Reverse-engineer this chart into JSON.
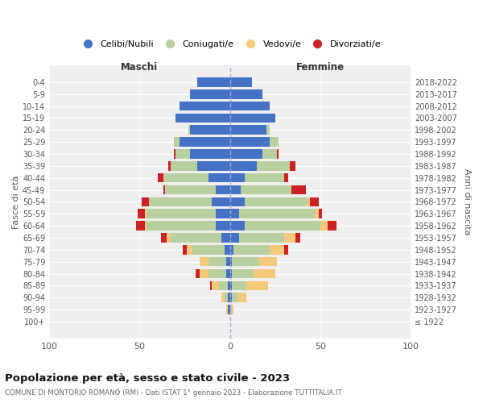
{
  "age_groups": [
    "100+",
    "95-99",
    "90-94",
    "85-89",
    "80-84",
    "75-79",
    "70-74",
    "65-69",
    "60-64",
    "55-59",
    "50-54",
    "45-49",
    "40-44",
    "35-39",
    "30-34",
    "25-29",
    "20-24",
    "15-19",
    "10-14",
    "5-9",
    "0-4"
  ],
  "birth_years": [
    "≤ 1922",
    "1923-1927",
    "1928-1932",
    "1933-1937",
    "1938-1942",
    "1943-1947",
    "1948-1952",
    "1953-1957",
    "1958-1962",
    "1963-1967",
    "1968-1972",
    "1973-1977",
    "1978-1982",
    "1983-1987",
    "1988-1992",
    "1993-1997",
    "1998-2002",
    "2003-2007",
    "2008-2012",
    "2013-2017",
    "2018-2022"
  ],
  "colors": {
    "celibi": "#4472c4",
    "coniugati": "#b8cfa0",
    "vedovi": "#f5c97a",
    "divorziati": "#cc2222"
  },
  "males": {
    "celibi": [
      0,
      1,
      1,
      1,
      2,
      2,
      3,
      5,
      8,
      8,
      10,
      8,
      12,
      18,
      22,
      28,
      22,
      30,
      28,
      22,
      18
    ],
    "coniugati": [
      0,
      0,
      2,
      5,
      10,
      10,
      18,
      28,
      38,
      38,
      35,
      28,
      25,
      15,
      8,
      3,
      1,
      0,
      0,
      0,
      0
    ],
    "vedovi": [
      0,
      1,
      2,
      4,
      5,
      5,
      3,
      2,
      1,
      1,
      0,
      0,
      0,
      0,
      0,
      0,
      0,
      0,
      0,
      0,
      0
    ],
    "divorziati": [
      0,
      0,
      0,
      1,
      2,
      0,
      2,
      3,
      5,
      4,
      4,
      1,
      3,
      1,
      1,
      0,
      0,
      0,
      0,
      0,
      0
    ]
  },
  "females": {
    "celibi": [
      0,
      0,
      1,
      1,
      1,
      1,
      2,
      5,
      8,
      5,
      8,
      6,
      8,
      15,
      18,
      22,
      20,
      25,
      22,
      18,
      12
    ],
    "coniugati": [
      0,
      1,
      3,
      8,
      12,
      15,
      20,
      25,
      42,
      42,
      35,
      28,
      22,
      18,
      8,
      5,
      2,
      0,
      0,
      0,
      0
    ],
    "vedovi": [
      0,
      1,
      5,
      12,
      12,
      10,
      8,
      6,
      4,
      2,
      1,
      0,
      0,
      0,
      0,
      0,
      0,
      0,
      0,
      0,
      0
    ],
    "divorziati": [
      0,
      0,
      0,
      0,
      0,
      0,
      2,
      3,
      5,
      2,
      5,
      8,
      2,
      3,
      1,
      0,
      0,
      0,
      0,
      0,
      0
    ]
  },
  "xlim": 100,
  "title": "Popolazione per età, sesso e stato civile - 2023",
  "subtitle": "COMUNE DI MONTORIO ROMANO (RM) - Dati ISTAT 1° gennaio 2023 - Elaborazione TUTTITALIA.IT",
  "ylabel_left": "Fasce di età",
  "ylabel_right": "Anni di nascita",
  "label_maschi": "Maschi",
  "label_femmine": "Femmine",
  "legend_labels": [
    "Celibi/Nubili",
    "Coniugati/e",
    "Vedovi/e",
    "Divorziati/e"
  ]
}
